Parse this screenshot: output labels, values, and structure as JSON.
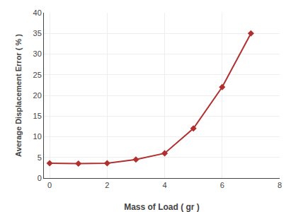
{
  "chart_data": {
    "type": "line",
    "x": [
      0,
      1,
      2,
      3,
      4,
      5,
      6,
      7
    ],
    "values": [
      3.6,
      3.5,
      3.6,
      4.5,
      6.0,
      12.0,
      22.0,
      35.0
    ],
    "color": "#b03030",
    "marker": "diamond",
    "line_style": "solid",
    "xlabel": "Mass of Load ( gr )",
    "ylabel": "Average Displacement Error ( % )",
    "xlim": [
      -0.2,
      8
    ],
    "ylim": [
      0,
      40
    ],
    "xticks": [
      0,
      2,
      4,
      6,
      8
    ],
    "yticks": [
      0,
      5,
      10,
      15,
      20,
      25,
      30,
      35,
      40
    ],
    "grid": true
  }
}
